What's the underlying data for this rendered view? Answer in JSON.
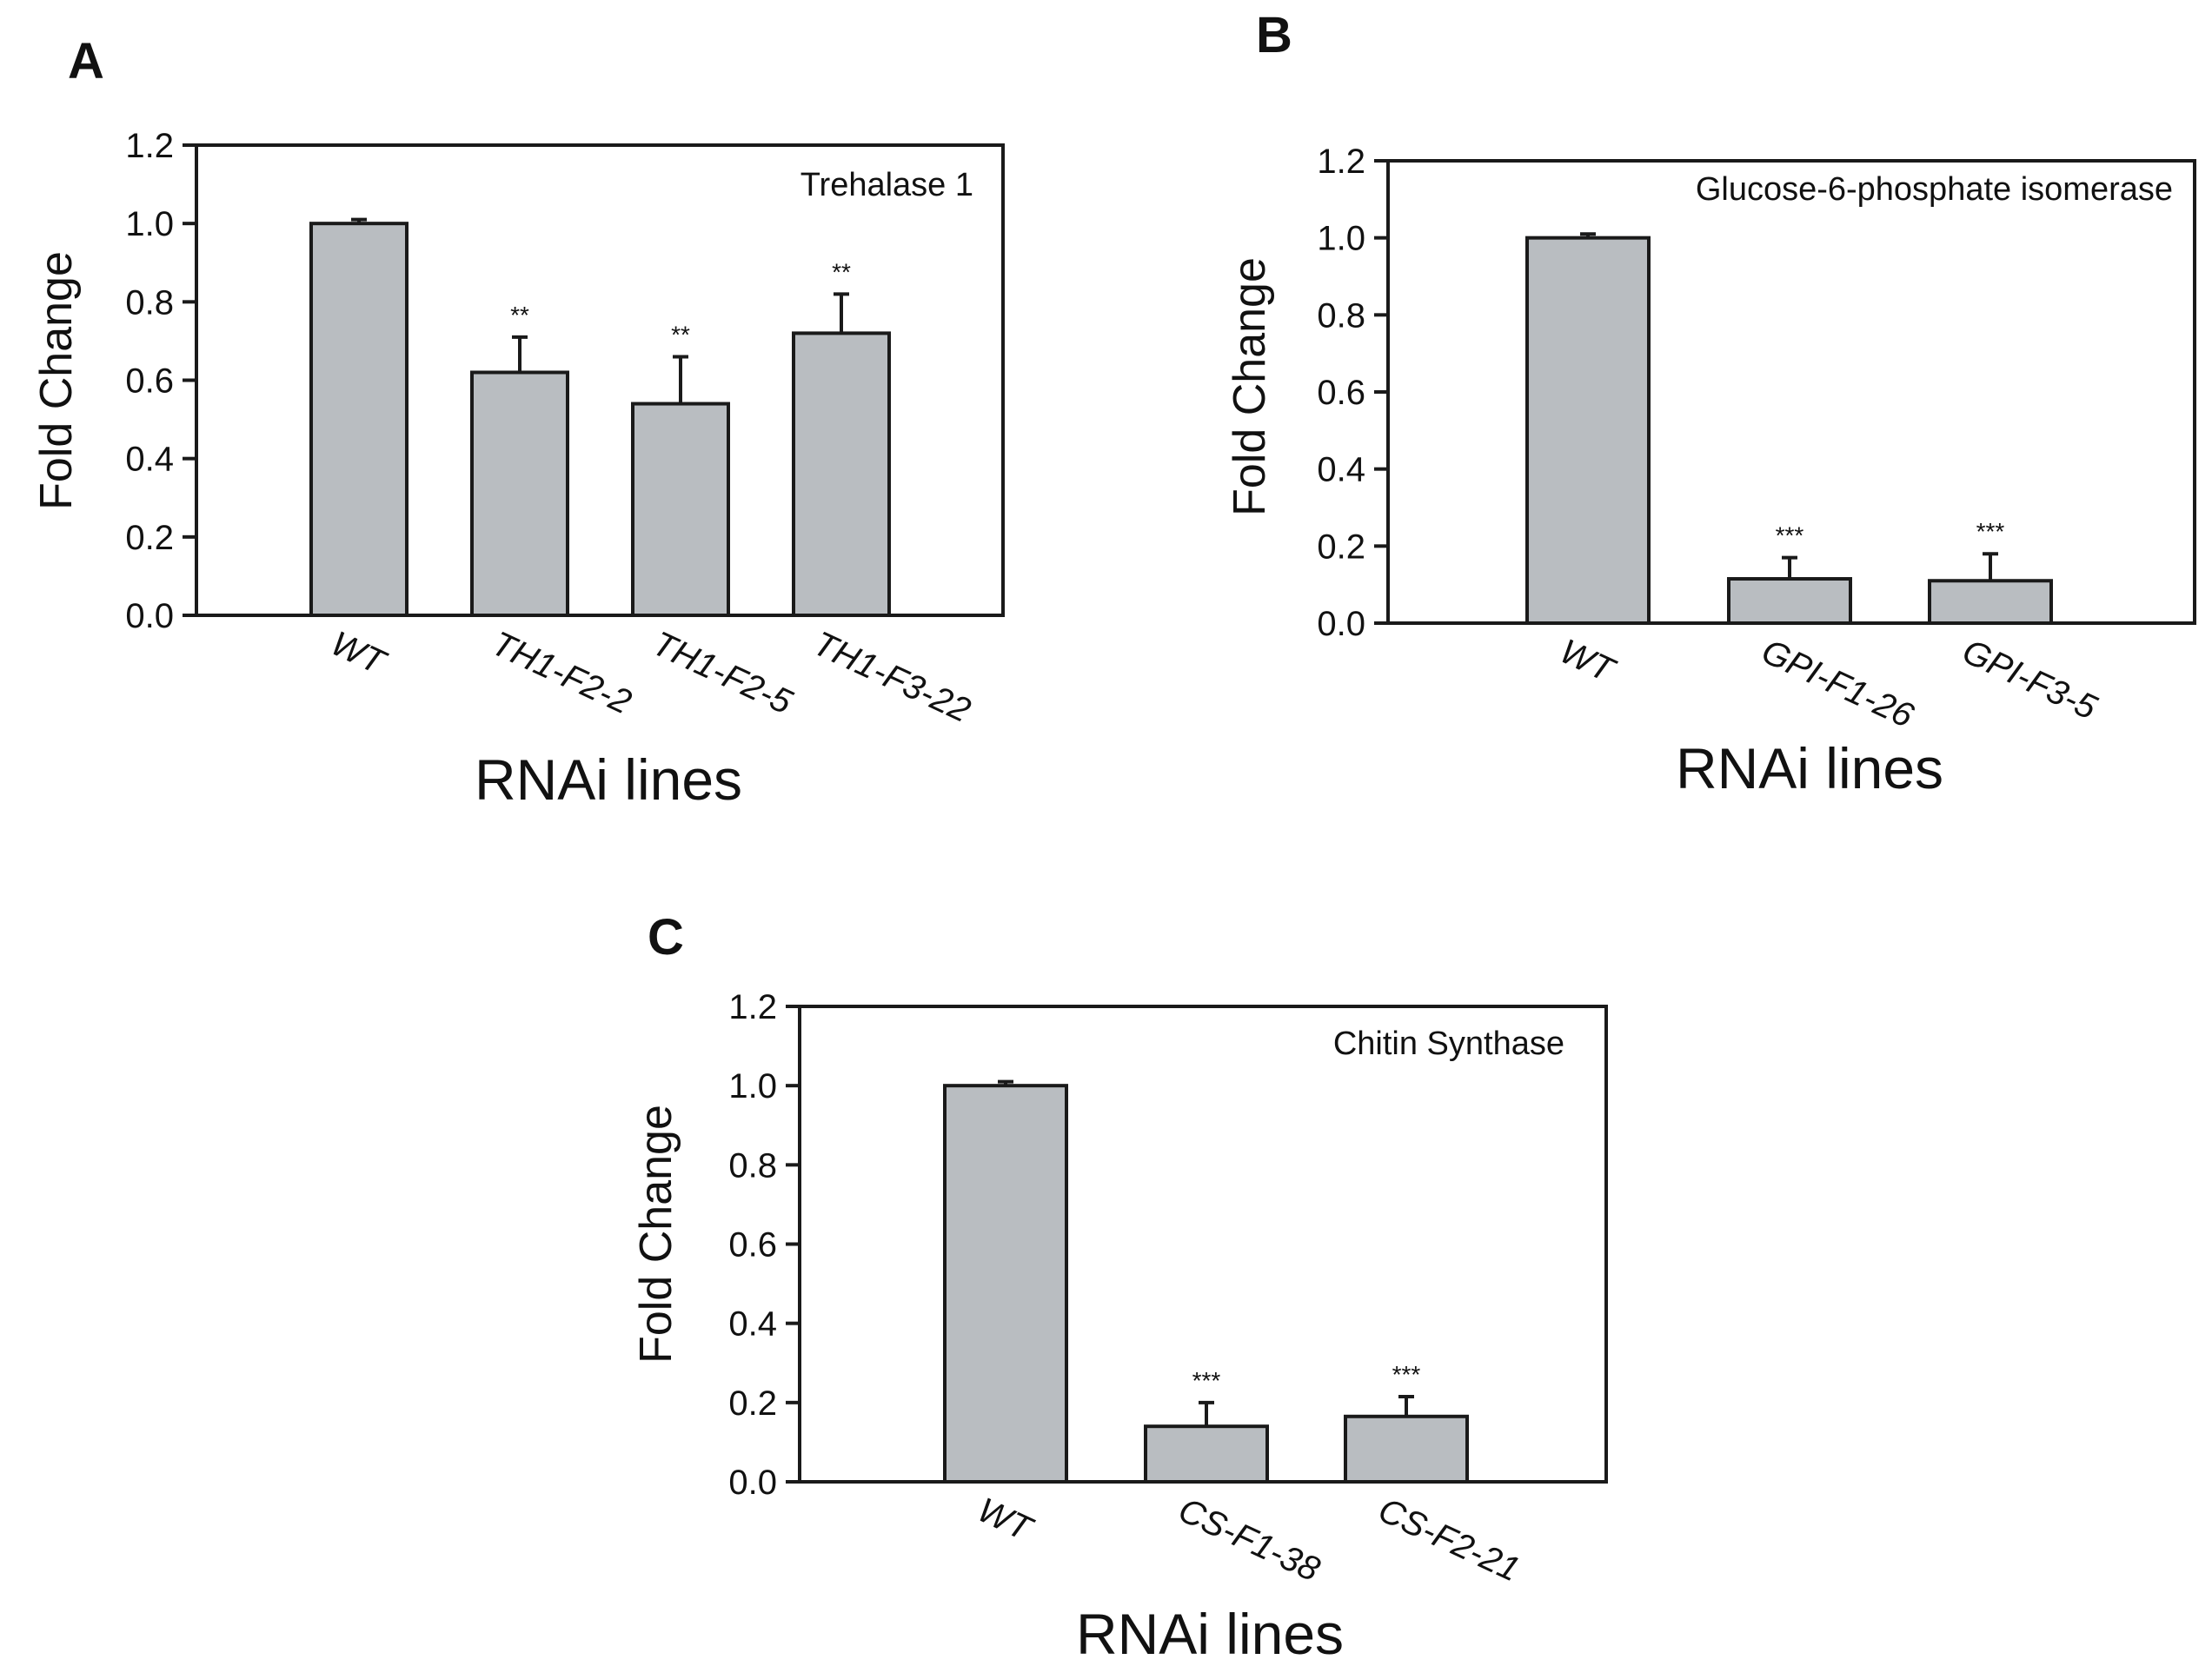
{
  "colors": {
    "bar_fill": "#b9bdc1",
    "stroke": "#1a1a1a",
    "background": "#ffffff"
  },
  "chart_data": [
    {
      "panel": "A",
      "type": "bar",
      "annotation": "Trehalase 1",
      "categories": [
        "WT",
        "TH1-F2-2",
        "TH1-F2-5",
        "TH1-F3-22"
      ],
      "values": [
        1.0,
        0.62,
        0.54,
        0.72
      ],
      "errors": [
        0.01,
        0.09,
        0.12,
        0.1
      ],
      "significance": [
        "",
        "**",
        "**",
        "**"
      ],
      "xlabel": "RNAi lines",
      "ylabel": "Fold Change",
      "ylim": [
        0,
        1.2
      ],
      "yticks": [
        "0.0",
        "0.2",
        "0.4",
        "0.6",
        "0.8",
        "1.0",
        "1.2"
      ],
      "grid": false
    },
    {
      "panel": "B",
      "type": "bar",
      "annotation": "Glucose-6-phosphate isomerase",
      "categories": [
        "WT",
        "GPI-F1-26",
        "GPI-F3-5"
      ],
      "values": [
        1.0,
        0.115,
        0.11
      ],
      "errors": [
        0.01,
        0.055,
        0.07
      ],
      "significance": [
        "",
        "***",
        "***"
      ],
      "xlabel": "RNAi lines",
      "ylabel": "Fold Change",
      "ylim": [
        0,
        1.2
      ],
      "yticks": [
        "0.0",
        "0.2",
        "0.4",
        "0.6",
        "0.8",
        "1.0",
        "1.2"
      ],
      "grid": false
    },
    {
      "panel": "C",
      "type": "bar",
      "annotation": "Chitin Synthase",
      "categories": [
        "WT",
        "CS-F1-38",
        "CS-F2-21"
      ],
      "values": [
        1.0,
        0.14,
        0.165
      ],
      "errors": [
        0.01,
        0.06,
        0.05
      ],
      "significance": [
        "",
        "***",
        "***"
      ],
      "xlabel": "RNAi lines",
      "ylabel": "Fold Change",
      "ylim": [
        0,
        1.2
      ],
      "yticks": [
        "0.0",
        "0.2",
        "0.4",
        "0.6",
        "0.8",
        "1.0",
        "1.2"
      ],
      "grid": false
    }
  ]
}
